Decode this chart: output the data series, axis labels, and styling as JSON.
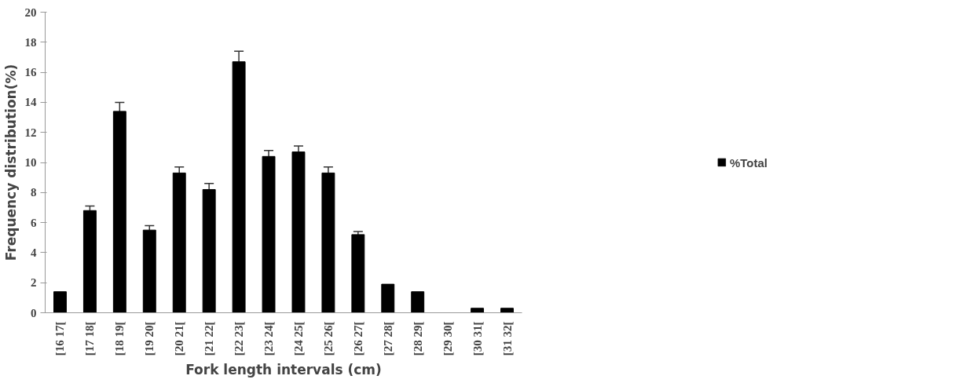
{
  "chart_data": {
    "type": "bar",
    "xlabel": "Fork length intervals (cm)",
    "ylabel": "Frequency distribution(%)",
    "categories": [
      "[16 17[",
      "[17 18[",
      "[18 19[",
      "[19 20[",
      "[20 21[",
      "[21 22[",
      "[22 23[",
      "[23 24[",
      "[24 25[",
      "[25 26[",
      "[26 27[",
      "[27 28[",
      "[28 29[",
      "[29 30[",
      "[30 31[",
      "[31 32["
    ],
    "series": [
      {
        "name": "%Total",
        "color": "#000000",
        "values": [
          1.4,
          6.8,
          13.4,
          5.5,
          9.3,
          8.2,
          16.7,
          10.4,
          10.7,
          9.3,
          5.2,
          1.9,
          1.4,
          0,
          0.3,
          0.3
        ],
        "errors": [
          null,
          [
            6.8,
            7.1
          ],
          [
            13.4,
            14.0
          ],
          [
            5.5,
            5.8
          ],
          [
            9.3,
            9.7
          ],
          [
            8.2,
            8.6
          ],
          [
            16.7,
            17.4
          ],
          [
            10.4,
            10.8
          ],
          [
            10.7,
            11.1
          ],
          [
            9.3,
            9.7
          ],
          [
            5.2,
            5.4
          ],
          null,
          null,
          null,
          null,
          null
        ]
      }
    ],
    "ylim": [
      0,
      20
    ],
    "yticks": [
      0,
      2,
      4,
      6,
      8,
      10,
      12,
      14,
      16,
      18,
      20
    ],
    "grid": false,
    "legend": "right"
  }
}
